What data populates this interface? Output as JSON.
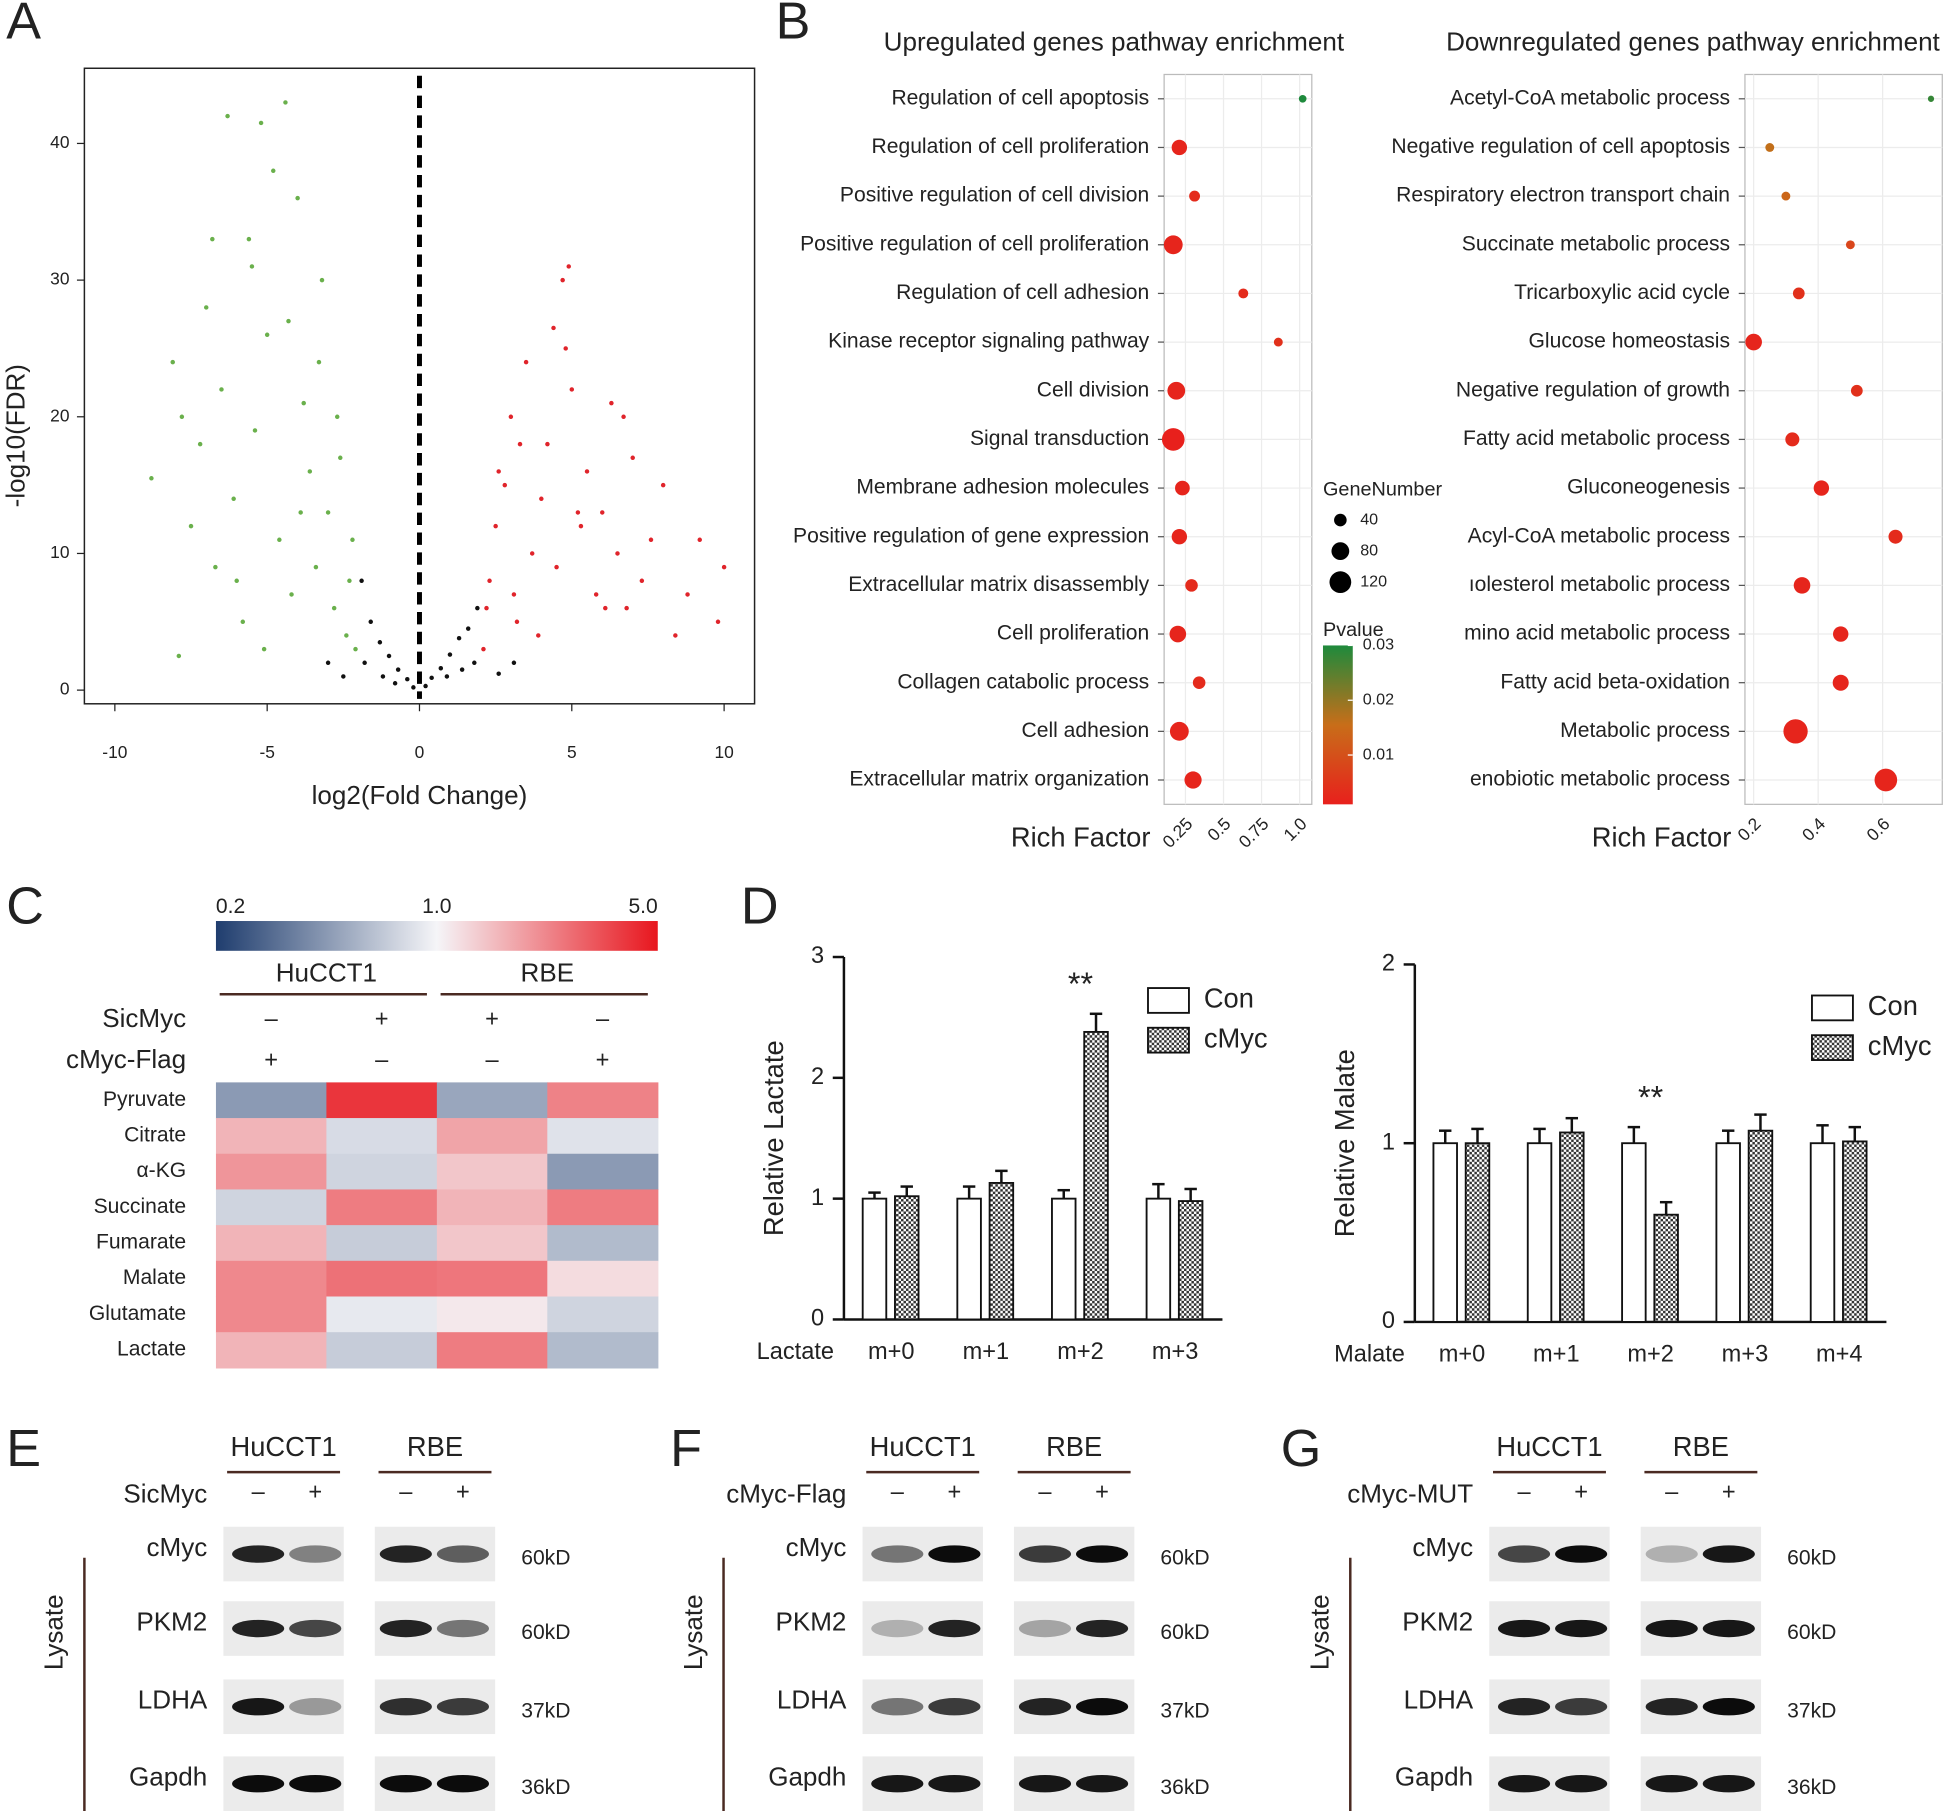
{
  "panel_labels": [
    "A",
    "B",
    "C",
    "D",
    "E",
    "F",
    "G"
  ],
  "chart_data": [
    {
      "type": "scatter",
      "xlabel": "log2(Fold Change)",
      "ylabel": "-log10(FDR)",
      "xlim": [
        -11,
        11
      ],
      "ylim": [
        -1,
        45.5
      ],
      "xticks": [
        -10,
        -5,
        0,
        5,
        10
      ],
      "yticks": [
        0,
        10,
        20,
        30,
        40
      ],
      "series": [
        {
          "color": "#6ab04c",
          "x": [
            -8.8,
            -8.1,
            -7.9,
            -7.5,
            -7.2,
            -7.0,
            -6.7,
            -6.5,
            -6.3,
            -6.1,
            -5.8,
            -5.6,
            -5.4,
            -5.2,
            -5.0,
            -4.8,
            -4.6,
            -4.4,
            -4.2,
            -4.0,
            -3.8,
            -3.6,
            -3.4,
            -3.2,
            -3.0,
            -2.8,
            -2.6,
            -2.4,
            -2.2,
            -2.1,
            -6.0,
            -5.1,
            -4.3,
            -3.9,
            -3.3,
            -2.7,
            -2.3,
            -7.8,
            -6.8,
            -5.5
          ],
          "values": [
            15.5,
            24,
            2.5,
            12,
            18,
            28,
            9,
            22,
            42,
            14,
            5,
            33,
            19,
            41.5,
            26,
            38,
            11,
            43,
            7,
            36,
            21,
            16,
            9,
            30,
            13,
            6,
            17,
            4,
            11,
            3,
            8,
            3,
            27,
            13,
            24,
            20,
            8,
            20,
            33,
            31
          ]
        },
        {
          "color": "#e0242b",
          "x": [
            2.1,
            2.3,
            2.5,
            2.8,
            3.0,
            3.2,
            3.5,
            3.7,
            4.0,
            4.2,
            4.5,
            4.7,
            5.0,
            5.3,
            5.5,
            5.8,
            6.0,
            6.3,
            6.5,
            6.8,
            7.0,
            7.3,
            7.6,
            8.0,
            8.4,
            8.8,
            9.2,
            9.8,
            10.0,
            2.2,
            2.6,
            3.3,
            3.9,
            4.4,
            4.9,
            5.2,
            6.1,
            6.7,
            3.1,
            4.8
          ],
          "values": [
            3,
            8,
            12,
            15,
            20,
            5,
            24,
            10,
            14,
            18,
            9,
            30,
            22,
            12,
            16,
            7,
            13,
            21,
            10,
            6,
            17,
            8,
            11,
            15,
            4,
            7,
            11,
            5,
            9,
            6,
            16,
            18,
            4,
            26.5,
            31,
            13,
            6,
            20,
            7,
            25
          ]
        },
        {
          "color": "#111111",
          "x": [
            -1.9,
            -1.6,
            -1.3,
            -1.0,
            -0.7,
            -0.4,
            -0.2,
            0.2,
            0.4,
            0.7,
            1.0,
            1.3,
            1.6,
            1.9,
            -1.8,
            -1.2,
            -0.8,
            0.9,
            1.4,
            1.8,
            -2.5,
            -3,
            2.6,
            3.1
          ],
          "values": [
            8,
            5,
            3.5,
            2.5,
            1.5,
            0.8,
            0.2,
            0.3,
            0.9,
            1.6,
            2.6,
            3.8,
            4.5,
            6,
            2,
            1,
            0.5,
            1,
            1.5,
            2,
            1,
            2,
            1.2,
            2
          ]
        }
      ]
    },
    {
      "type": "dot",
      "title": "Upregulated genes pathway enrichment",
      "xlabel": "Rich Factor",
      "categories": [
        "Regulation of cell apoptosis",
        "Regulation of cell proliferation",
        "Positive regulation of cell division",
        "Positive regulation of cell proliferation",
        "Regulation of cell adhesion",
        "Kinase receptor signaling pathway",
        "Cell division",
        "Signal transduction",
        "Membrane adhesion molecules",
        "Positive regulation of gene expression",
        "Extracellular matrix disassembly",
        "Cell proliferation",
        "Collagen catabolic process",
        "Cell adhesion",
        "Extracellular matrix organization"
      ],
      "values": [
        1.02,
        0.21,
        0.31,
        0.17,
        0.63,
        0.86,
        0.19,
        0.17,
        0.23,
        0.21,
        0.29,
        0.2,
        0.34,
        0.21,
        0.3
      ],
      "sizes": [
        15,
        60,
        30,
        90,
        25,
        20,
        80,
        130,
        55,
        60,
        40,
        70,
        40,
        90,
        75
      ],
      "pvalues": [
        0.03,
        0.002,
        0.003,
        0.002,
        0.003,
        0.004,
        0.002,
        0.001,
        0.002,
        0.002,
        0.003,
        0.002,
        0.003,
        0.002,
        0.002
      ],
      "xlim": [
        0.11,
        1.08
      ],
      "xticks": [
        0.25,
        0.5,
        0.75,
        {
          "value": 1,
          "label": "1.0"
        }
      ],
      "grid": true,
      "size_legend": {
        "title": "GeneNumber",
        "values": [
          40,
          80,
          120
        ]
      },
      "color_legend": {
        "title": "Pvalue",
        "lim": [
          0.001,
          0.03
        ],
        "ticks": [
          0.01,
          0.02,
          0.03
        ]
      }
    },
    {
      "type": "dot",
      "title": "Downregulated genes pathway enrichment",
      "xlabel": "Rich Factor",
      "categories": [
        "Acetyl-CoA metabolic process",
        "Negative regulation of cell apoptosis",
        "Respiratory electron transport chain",
        "Succinate metabolic process",
        "Tricarboxylic acid cycle",
        "Glucose homeostasis",
        "Negative regulation of growth",
        "Fatty acid metabolic process",
        "Gluconeogenesis",
        "Acyl-CoA metabolic process",
        "ıolesterol metabolic process",
        "mino acid metabolic process",
        "Fatty acid beta-oxidation",
        "Metabolic process",
        "enobiotic metabolic process"
      ],
      "values": [
        0.75,
        0.25,
        0.3,
        0.5,
        0.34,
        0.2,
        0.52,
        0.32,
        0.41,
        0.64,
        0.35,
        0.47,
        0.47,
        0.33,
        0.61
      ],
      "sizes": [
        10,
        20,
        20,
        20,
        35,
        70,
        35,
        50,
        60,
        50,
        70,
        60,
        65,
        150,
        130
      ],
      "pvalues": [
        0.028,
        0.016,
        0.014,
        0.008,
        0.004,
        0.002,
        0.004,
        0.003,
        0.002,
        0.003,
        0.002,
        0.002,
        0.002,
        0.002,
        0.002
      ],
      "xlim": [
        0.173,
        0.785
      ],
      "xticks": [
        0.2,
        0.4,
        0.6
      ],
      "grid": true
    },
    {
      "type": "heatmap",
      "colorbar": {
        "lim": [
          0.2,
          5
        ],
        "ticks": [
          0.2,
          {
            "value": 1,
            "label": "1.0"
          },
          {
            "value": 5,
            "label": "5.0"
          }
        ],
        "log": true
      },
      "groups": [
        "HuCCT1",
        "RBE"
      ],
      "conditions": [
        {
          "name": "SicMyc",
          "signs": [
            "–",
            "+",
            "+",
            "–"
          ]
        },
        {
          "name": "cMyc-Flag",
          "signs": [
            "+",
            "–",
            "–",
            "+"
          ]
        }
      ],
      "rows": [
        "Pyruvate",
        "Citrate",
        "α-KG",
        "Succinate",
        "Fumarate",
        "Malate",
        "Glutamate",
        "Lactate"
      ],
      "values": [
        [
          0.45,
          4.0,
          0.5,
          2.3
        ],
        [
          1.6,
          0.8,
          1.8,
          0.85
        ],
        [
          2.0,
          0.75,
          1.4,
          0.45
        ],
        [
          0.75,
          2.4,
          1.6,
          2.4
        ],
        [
          1.6,
          0.7,
          1.4,
          0.6
        ],
        [
          2.2,
          2.6,
          2.5,
          1.2
        ],
        [
          2.2,
          0.9,
          1.1,
          0.75
        ],
        [
          1.6,
          0.7,
          2.4,
          0.6
        ]
      ]
    },
    {
      "type": "bar",
      "ylabel": "Relative Lactate",
      "xlabel": "Lactate",
      "categories": [
        "m+0",
        "m+1",
        "m+2",
        "m+3"
      ],
      "ylim": [
        0,
        3
      ],
      "yticks": [
        0,
        1,
        2,
        3
      ],
      "series": [
        {
          "name": "Con",
          "color": "#ffffff",
          "values": [
            1.0,
            1.0,
            1.0,
            1.0
          ],
          "errors": [
            0.05,
            0.1,
            0.07,
            0.12
          ]
        },
        {
          "name": "cMyc",
          "pattern": "checker",
          "values": [
            1.02,
            1.13,
            2.38,
            0.98
          ],
          "errors": [
            0.08,
            0.1,
            0.15,
            0.1
          ]
        }
      ],
      "annotation": {
        "text": "**",
        "category": "m+2"
      },
      "legend": "upper right"
    },
    {
      "type": "bar",
      "ylabel": "Relative Malate",
      "xlabel": "Malate",
      "categories": [
        "m+0",
        "m+1",
        "m+2",
        "m+3",
        "m+4"
      ],
      "ylim": [
        0,
        2
      ],
      "yticks": [
        0,
        1,
        2
      ],
      "series": [
        {
          "name": "Con",
          "color": "#ffffff",
          "values": [
            1.0,
            1.0,
            1.0,
            1.0,
            1.0
          ],
          "errors": [
            0.07,
            0.08,
            0.09,
            0.07,
            0.1
          ]
        },
        {
          "name": "cMyc",
          "pattern": "checker",
          "values": [
            1.0,
            1.06,
            0.6,
            1.07,
            1.01
          ],
          "errors": [
            0.08,
            0.08,
            0.07,
            0.09,
            0.08
          ]
        }
      ],
      "annotation": {
        "text": "**",
        "category": "m+2"
      },
      "legend": "upper right"
    }
  ],
  "blots": [
    {
      "groups": [
        "HuCCT1",
        "RBE"
      ],
      "condition": "SicMyc",
      "signs": [
        "–",
        "+",
        "–",
        "+"
      ],
      "side_label": "Lysate",
      "proteins": [
        "cMyc",
        "PKM2",
        "LDHA",
        "Gapdh"
      ],
      "sizes": [
        "60kD",
        "60kD",
        "37kD",
        "36kD"
      ]
    },
    {
      "groups": [
        "HuCCT1",
        "RBE"
      ],
      "condition": "cMyc-Flag",
      "signs": [
        "–",
        "+",
        "–",
        "+"
      ],
      "side_label": "Lysate",
      "proteins": [
        "cMyc",
        "PKM2",
        "LDHA",
        "Gapdh"
      ],
      "sizes": [
        "60kD",
        "60kD",
        "37kD",
        "36kD"
      ]
    },
    {
      "groups": [
        "HuCCT1",
        "RBE"
      ],
      "condition": "cMyc-MUT",
      "signs": [
        "–",
        "+",
        "–",
        "+"
      ],
      "side_label": "Lysate",
      "proteins": [
        "cMyc",
        "PKM2",
        "LDHA",
        "Gapdh"
      ],
      "sizes": [
        "60kD",
        "60kD",
        "37kD",
        "36kD"
      ]
    }
  ]
}
